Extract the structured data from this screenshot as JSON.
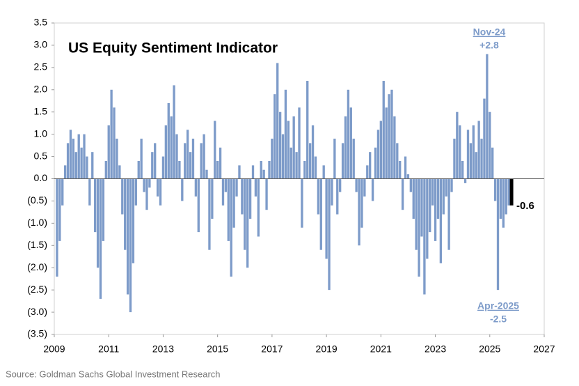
{
  "chart_data": {
    "type": "bar",
    "title": "US Equity Sentiment Indicator",
    "source": "Source: Goldman Sachs Global Investment Research",
    "color": "#7d9bc9",
    "latest_color": "#000000",
    "annotations": [
      {
        "label": "Nov-24",
        "value_label": "+2.8"
      },
      {
        "label": "Apr-2025",
        "value_label": "-2.5"
      },
      {
        "label": "-0.6"
      }
    ],
    "xlim": [
      2009,
      2027
    ],
    "xticks": [
      2009,
      2011,
      2013,
      2015,
      2017,
      2019,
      2021,
      2023,
      2025,
      2027
    ],
    "ylim": [
      -3.5,
      3.5
    ],
    "yticks": [
      {
        "value": 3.5,
        "label": "3.5"
      },
      {
        "value": 3,
        "label": "3.0"
      },
      {
        "value": 2.5,
        "label": "2.5"
      },
      {
        "value": 2,
        "label": "2.0"
      },
      {
        "value": 1.5,
        "label": "1.5"
      },
      {
        "value": 1,
        "label": "1.0"
      },
      {
        "value": 0.5,
        "label": "0.5"
      },
      {
        "value": 0,
        "label": "0.0"
      },
      {
        "value": -0.5,
        "label": "(0.5)"
      },
      {
        "value": -1,
        "label": "(1.0)"
      },
      {
        "value": -1.5,
        "label": "(1.5)"
      },
      {
        "value": -2,
        "label": "(2.0)"
      },
      {
        "value": -2.5,
        "label": "(2.5)"
      },
      {
        "value": -3,
        "label": "(3.0)"
      },
      {
        "value": -3.5,
        "label": "(3.5)"
      }
    ],
    "x": [
      2009.1,
      2009.2,
      2009.3,
      2009.4,
      2009.5,
      2009.6,
      2009.7,
      2009.8,
      2009.9,
      2010.0,
      2010.1,
      2010.2,
      2010.3,
      2010.4,
      2010.5,
      2010.6,
      2010.7,
      2010.8,
      2010.9,
      2011.0,
      2011.1,
      2011.2,
      2011.3,
      2011.4,
      2011.5,
      2011.6,
      2011.7,
      2011.8,
      2011.9,
      2012.0,
      2012.1,
      2012.2,
      2012.3,
      2012.4,
      2012.5,
      2012.6,
      2012.7,
      2012.8,
      2012.9,
      2013.0,
      2013.1,
      2013.2,
      2013.3,
      2013.4,
      2013.5,
      2013.6,
      2013.7,
      2013.8,
      2013.9,
      2014.0,
      2014.1,
      2014.2,
      2014.3,
      2014.4,
      2014.5,
      2014.6,
      2014.7,
      2014.8,
      2014.9,
      2015.0,
      2015.1,
      2015.2,
      2015.3,
      2015.4,
      2015.5,
      2015.6,
      2015.7,
      2015.8,
      2015.9,
      2016.0,
      2016.1,
      2016.2,
      2016.3,
      2016.4,
      2016.5,
      2016.6,
      2016.7,
      2016.8,
      2016.9,
      2017.0,
      2017.1,
      2017.2,
      2017.3,
      2017.4,
      2017.5,
      2017.6,
      2017.7,
      2017.8,
      2017.9,
      2018.0,
      2018.1,
      2018.2,
      2018.3,
      2018.4,
      2018.5,
      2018.6,
      2018.7,
      2018.8,
      2018.9,
      2019.0,
      2019.1,
      2019.2,
      2019.3,
      2019.4,
      2019.5,
      2019.6,
      2019.7,
      2019.8,
      2019.9,
      2020.0,
      2020.1,
      2020.2,
      2020.3,
      2020.4,
      2020.5,
      2020.6,
      2020.7,
      2020.8,
      2020.9,
      2021.0,
      2021.1,
      2021.2,
      2021.3,
      2021.4,
      2021.5,
      2021.6,
      2021.7,
      2021.8,
      2021.9,
      2022.0,
      2022.1,
      2022.2,
      2022.3,
      2022.4,
      2022.5,
      2022.6,
      2022.7,
      2022.8,
      2022.9,
      2023.0,
      2023.1,
      2023.2,
      2023.3,
      2023.4,
      2023.5,
      2023.6,
      2023.7,
      2023.8,
      2023.9,
      2024.0,
      2024.1,
      2024.2,
      2024.3,
      2024.4,
      2024.5,
      2024.6,
      2024.7,
      2024.8,
      2024.9,
      2025.0,
      2025.1,
      2025.2,
      2025.3,
      2025.4,
      2025.5,
      2025.6,
      2025.7,
      2025.8
    ],
    "values": [
      -2.2,
      -1.4,
      -0.6,
      0.3,
      0.8,
      1.1,
      0.9,
      0.6,
      1.0,
      0.7,
      1.0,
      0.5,
      -0.6,
      0.6,
      -1.2,
      -2.0,
      -2.7,
      -1.4,
      0.4,
      1.2,
      2.0,
      1.6,
      0.9,
      0.3,
      -0.8,
      -1.6,
      -2.6,
      -3.0,
      -1.9,
      -0.6,
      0.4,
      0.9,
      -0.3,
      -0.7,
      -0.2,
      0.6,
      0.8,
      -0.4,
      -0.6,
      0.5,
      1.2,
      1.7,
      1.4,
      2.1,
      1.0,
      0.4,
      -0.5,
      0.8,
      1.1,
      0.6,
      0.9,
      -0.4,
      -1.2,
      0.8,
      1.0,
      0.2,
      -1.6,
      -0.9,
      1.3,
      0.4,
      0.7,
      -0.6,
      -0.3,
      -1.4,
      -2.2,
      -1.1,
      -0.4,
      0.3,
      -0.8,
      -1.6,
      -2.0,
      -0.9,
      0.3,
      -0.4,
      -1.3,
      0.4,
      0.2,
      -0.7,
      0.4,
      0.9,
      1.9,
      2.6,
      1.5,
      1.0,
      2.0,
      1.3,
      0.7,
      1.4,
      0.6,
      1.6,
      -1.1,
      0.4,
      2.2,
      0.8,
      1.2,
      0.5,
      -0.8,
      -1.6,
      0.3,
      -1.8,
      -2.5,
      -0.6,
      0.9,
      -0.8,
      -0.3,
      0.8,
      1.4,
      2.0,
      1.6,
      0.9,
      -0.3,
      -1.5,
      -1.1,
      -0.4,
      0.3,
      0.6,
      -0.5,
      0.7,
      1.1,
      1.3,
      2.2,
      1.6,
      1.9,
      2.0,
      1.4,
      0.8,
      0.4,
      -0.7,
      0.5,
      0.1,
      -0.3,
      -0.9,
      -1.6,
      -2.2,
      -1.3,
      -2.6,
      -1.8,
      -1.2,
      -0.6,
      -1.4,
      -0.9,
      -1.9,
      -0.8,
      -0.4,
      -1.6,
      -0.3,
      0.9,
      1.5,
      1.2,
      0.4,
      -0.1,
      1.1,
      0.8,
      1.2,
      0.6,
      1.3,
      0.9,
      1.8,
      2.8,
      1.5,
      0.7,
      -0.5,
      -2.5,
      -0.9,
      -1.1,
      -0.8,
      -0.6,
      -0.6
    ]
  }
}
